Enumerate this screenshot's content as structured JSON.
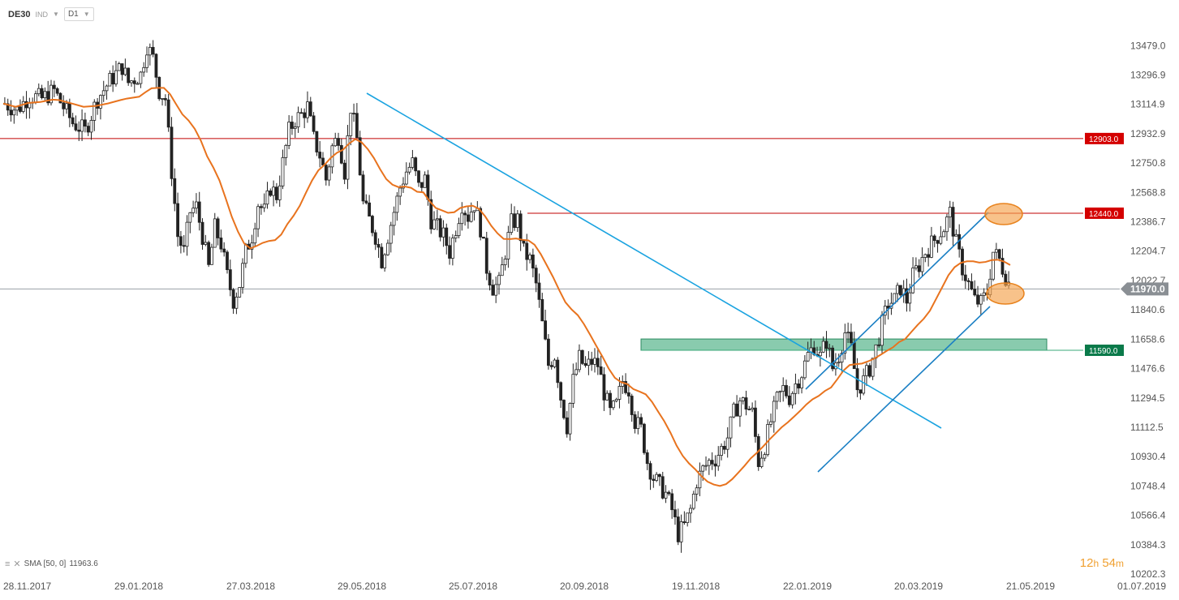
{
  "header": {
    "symbol": "DE30",
    "market": "IND",
    "timeframe": "D1"
  },
  "indicator": {
    "label": "SMA [50, 0]",
    "value": "11963.6"
  },
  "timer": {
    "hours": "12",
    "h_unit": "h",
    "minutes": "54",
    "m_unit": "m"
  },
  "colors": {
    "candle": "#222222",
    "sma": "#e8731e",
    "trendline": "#1aa3e0",
    "channel": "#1a7fc4",
    "resistance": "#c00000",
    "support_zone": "#3aa878",
    "current_price": "#9aa0a6",
    "highlight": "#f4a24b"
  },
  "chart_data": {
    "type": "candlestick",
    "y_range": [
      10202.3,
      13561
    ],
    "y_ticks": [
      "13479.0",
      "13296.9",
      "13114.9",
      "12932.9",
      "12750.8",
      "12568.8",
      "12386.7",
      "12204.7",
      "12022.7",
      "11840.6",
      "11658.6",
      "11476.6",
      "11294.5",
      "11112.5",
      "10930.4",
      "10748.4",
      "10566.4",
      "10384.3",
      "10202.3"
    ],
    "x_ticks": [
      "28.11.2017",
      "29.01.2018",
      "27.03.2018",
      "29.05.2018",
      "25.07.2018",
      "20.09.2018",
      "19.11.2018",
      "22.01.2019",
      "20.03.2019",
      "21.05.2019",
      "01.07.2019"
    ],
    "price_tags": [
      {
        "value": 12903.0,
        "label": "12903.0",
        "color": "#d40000"
      },
      {
        "value": 12440.0,
        "label": "12440.0",
        "color": "#d40000"
      },
      {
        "value": 11970.0,
        "label": "11970.0",
        "color": "#8a8f94"
      },
      {
        "value": 11590.0,
        "label": "11590.0",
        "color": "#0a7a4a"
      }
    ],
    "ohlc_close_path": [
      [
        0,
        13120
      ],
      [
        4,
        13080
      ],
      [
        8,
        13170
      ],
      [
        12,
        13150
      ],
      [
        16,
        13200
      ],
      [
        18,
        13130
      ],
      [
        22,
        13000
      ],
      [
        26,
        12950
      ],
      [
        30,
        13150
      ],
      [
        34,
        13260
      ],
      [
        38,
        13350
      ],
      [
        40,
        13250
      ],
      [
        44,
        13300
      ],
      [
        46,
        13480
      ],
      [
        48,
        13400
      ],
      [
        50,
        13200
      ],
      [
        52,
        13150
      ],
      [
        54,
        12700
      ],
      [
        56,
        12300
      ],
      [
        58,
        12200
      ],
      [
        60,
        12450
      ],
      [
        62,
        12480
      ],
      [
        64,
        12300
      ],
      [
        66,
        12100
      ],
      [
        68,
        12350
      ],
      [
        70,
        12250
      ],
      [
        72,
        12050
      ],
      [
        74,
        11900
      ],
      [
        76,
        12000
      ],
      [
        78,
        12200
      ],
      [
        80,
        12300
      ],
      [
        82,
        12500
      ],
      [
        84,
        12450
      ],
      [
        86,
        12600
      ],
      [
        88,
        12550
      ],
      [
        90,
        12750
      ],
      [
        92,
        12950
      ],
      [
        94,
        13020
      ],
      [
        96,
        13050
      ],
      [
        98,
        13100
      ],
      [
        100,
        12900
      ],
      [
        102,
        12800
      ],
      [
        104,
        12650
      ],
      [
        106,
        12850
      ],
      [
        108,
        12920
      ],
      [
        110,
        12700
      ],
      [
        112,
        13100
      ],
      [
        114,
        12900
      ],
      [
        116,
        12500
      ],
      [
        118,
        12400
      ],
      [
        120,
        12300
      ],
      [
        122,
        12150
      ],
      [
        124,
        12300
      ],
      [
        126,
        12450
      ],
      [
        128,
        12600
      ],
      [
        130,
        12700
      ],
      [
        132,
        12750
      ],
      [
        134,
        12600
      ],
      [
        136,
        12650
      ],
      [
        138,
        12400
      ],
      [
        140,
        12350
      ],
      [
        142,
        12300
      ],
      [
        144,
        12200
      ],
      [
        146,
        12350
      ],
      [
        148,
        12500
      ],
      [
        150,
        12420
      ],
      [
        152,
        12500
      ],
      [
        154,
        12350
      ],
      [
        156,
        12100
      ],
      [
        158,
        11980
      ],
      [
        160,
        12000
      ],
      [
        162,
        12200
      ],
      [
        164,
        12380
      ],
      [
        166,
        12400
      ],
      [
        168,
        12200
      ],
      [
        170,
        12150
      ],
      [
        172,
        12000
      ],
      [
        174,
        11750
      ],
      [
        176,
        11500
      ],
      [
        178,
        11560
      ],
      [
        180,
        11300
      ],
      [
        182,
        11120
      ],
      [
        184,
        11400
      ],
      [
        186,
        11540
      ],
      [
        188,
        11480
      ],
      [
        190,
        11520
      ],
      [
        192,
        11500
      ],
      [
        194,
        11330
      ],
      [
        196,
        11200
      ],
      [
        198,
        11250
      ],
      [
        200,
        11400
      ],
      [
        202,
        11350
      ],
      [
        204,
        11150
      ],
      [
        206,
        11100
      ],
      [
        208,
        10900
      ],
      [
        210,
        10800
      ],
      [
        212,
        10750
      ],
      [
        214,
        10700
      ],
      [
        216,
        10600
      ],
      [
        218,
        10450
      ],
      [
        220,
        10500
      ],
      [
        222,
        10600
      ],
      [
        224,
        10780
      ],
      [
        226,
        10850
      ],
      [
        228,
        10900
      ],
      [
        230,
        10920
      ],
      [
        232,
        10980
      ],
      [
        234,
        11050
      ],
      [
        236,
        11200
      ],
      [
        238,
        11280
      ],
      [
        240,
        11250
      ],
      [
        242,
        11200
      ],
      [
        244,
        10900
      ],
      [
        246,
        11000
      ],
      [
        248,
        11150
      ],
      [
        250,
        11280
      ],
      [
        252,
        11350
      ],
      [
        254,
        11300
      ],
      [
        256,
        11380
      ],
      [
        258,
        11450
      ],
      [
        260,
        11560
      ],
      [
        262,
        11620
      ],
      [
        264,
        11550
      ],
      [
        266,
        11650
      ],
      [
        268,
        11480
      ],
      [
        270,
        11560
      ],
      [
        272,
        11700
      ],
      [
        274,
        11600
      ],
      [
        276,
        11350
      ],
      [
        278,
        11400
      ],
      [
        280,
        11480
      ],
      [
        282,
        11600
      ],
      [
        284,
        11750
      ],
      [
        286,
        11880
      ],
      [
        288,
        11900
      ],
      [
        290,
        11980
      ],
      [
        292,
        11900
      ],
      [
        294,
        12050
      ],
      [
        296,
        12120
      ],
      [
        298,
        12200
      ],
      [
        300,
        12250
      ],
      [
        302,
        12300
      ],
      [
        304,
        12350
      ],
      [
        306,
        12440
      ],
      [
        308,
        12250
      ],
      [
        310,
        12100
      ],
      [
        312,
        12000
      ],
      [
        314,
        11900
      ],
      [
        316,
        11880
      ],
      [
        318,
        11950
      ],
      [
        320,
        12200
      ],
      [
        322,
        12150
      ],
      [
        324,
        12050
      ],
      [
        326,
        11970
      ]
    ]
  }
}
